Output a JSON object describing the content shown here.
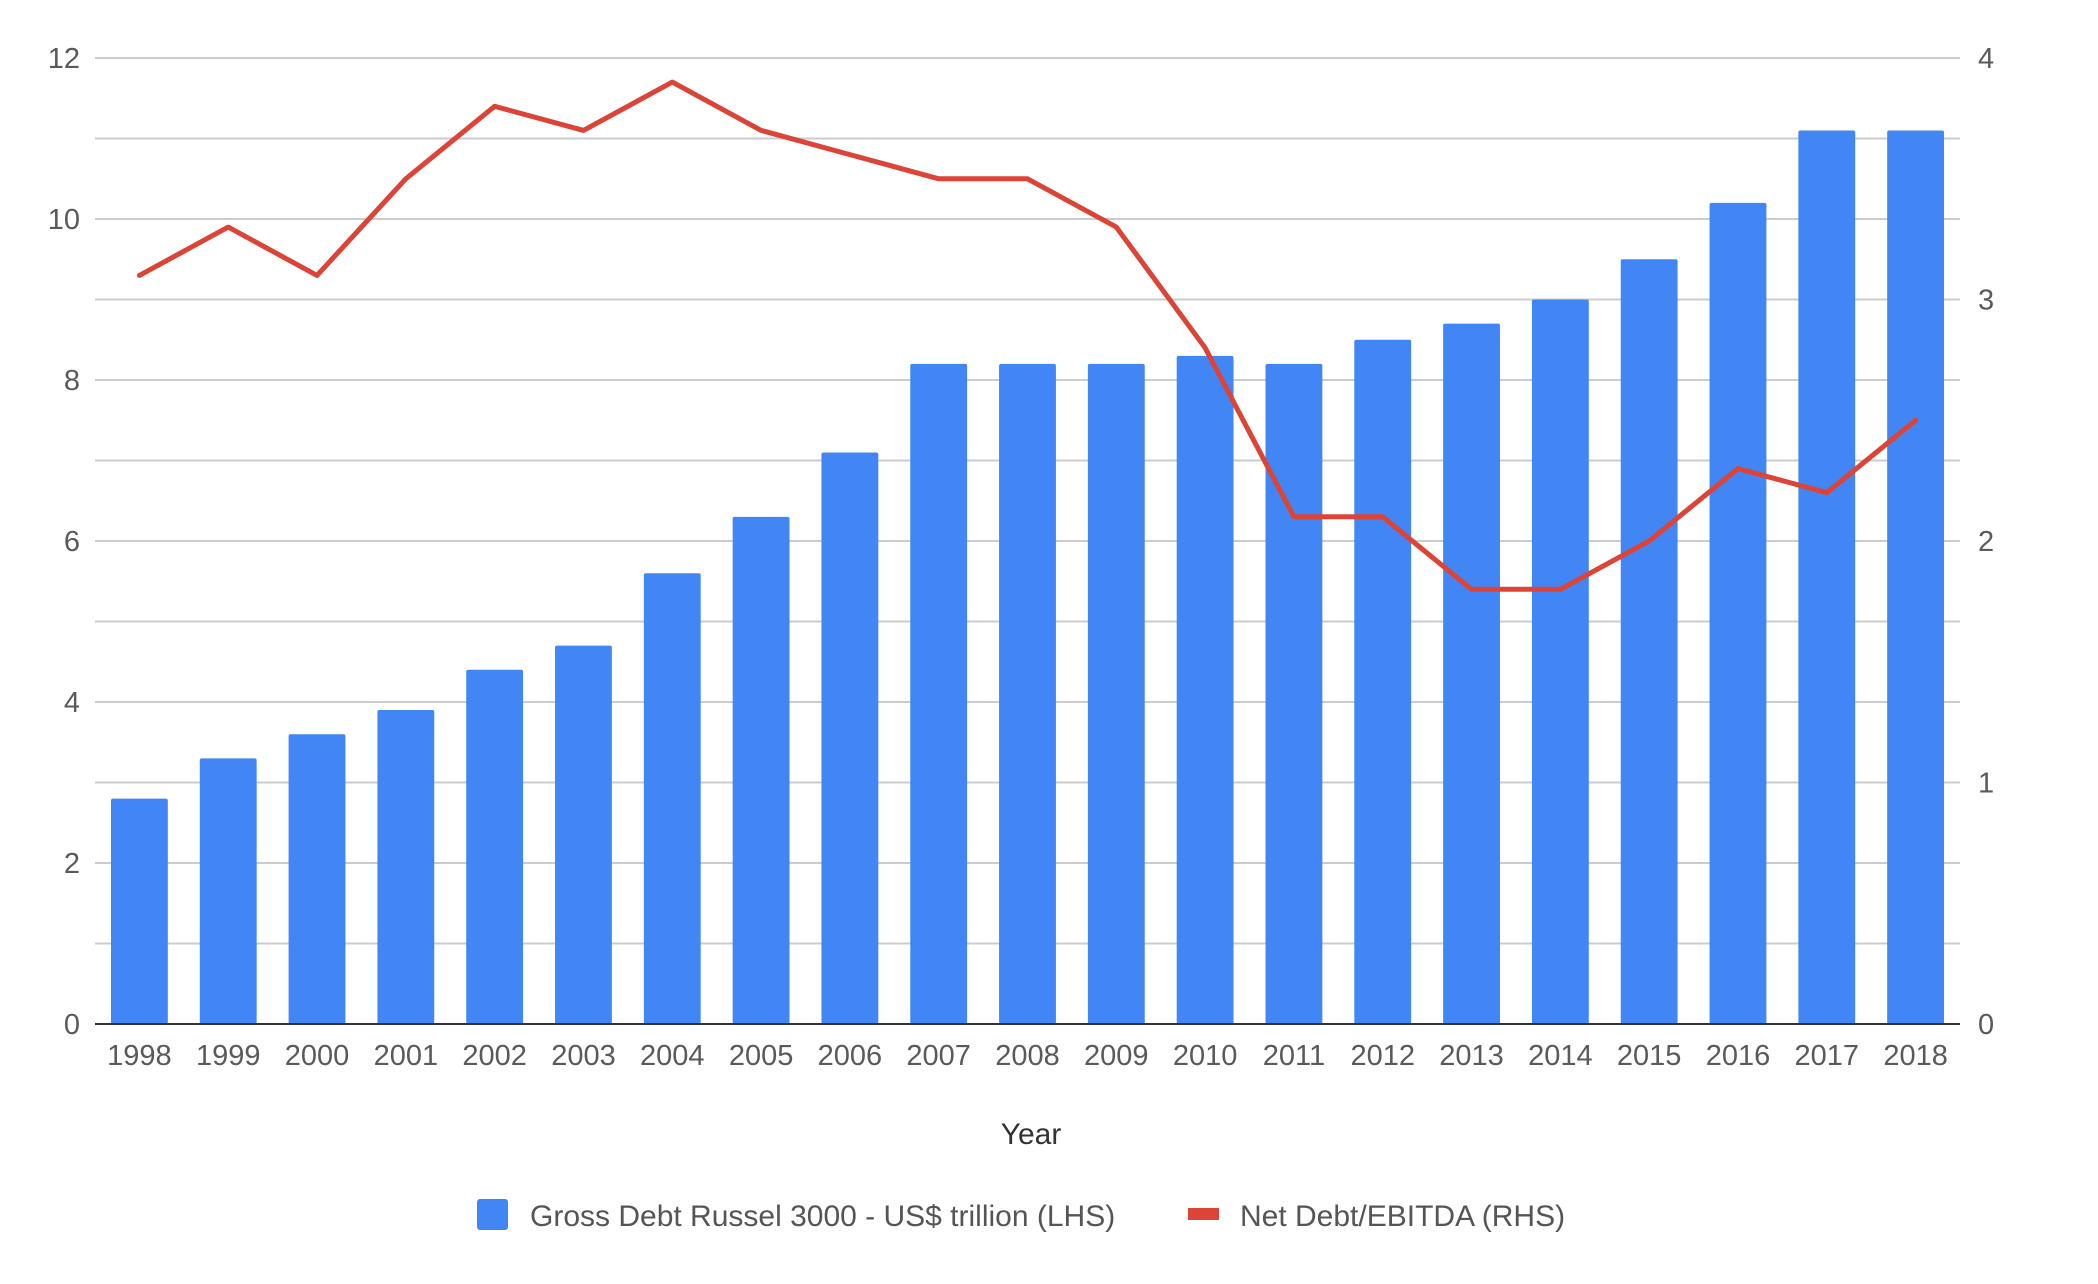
{
  "chart_data": {
    "type": "bar",
    "title": "",
    "xlabel": "Year",
    "ylabel": "",
    "categories": [
      "1998",
      "1999",
      "2000",
      "2001",
      "2002",
      "2003",
      "2004",
      "2005",
      "2006",
      "2007",
      "2008",
      "2009",
      "2010",
      "2011",
      "2012",
      "2013",
      "2014",
      "2015",
      "2016",
      "2017",
      "2018"
    ],
    "y_left": {
      "ylim": [
        0,
        12
      ],
      "ticks": [
        "0",
        "2",
        "4",
        "6",
        "8",
        "10",
        "12"
      ]
    },
    "y_right": {
      "ylim": [
        0,
        4
      ],
      "ticks": [
        "0",
        "1",
        "2",
        "3",
        "4"
      ]
    },
    "grid": true,
    "legend_position": "bottom",
    "series": [
      {
        "name": "Gross Debt Russel 3000 - US$ trillion (LHS)",
        "type": "bar",
        "axis": "left",
        "color": "#4285f4",
        "values": [
          2.8,
          3.3,
          3.6,
          3.9,
          4.4,
          4.7,
          5.6,
          6.3,
          7.1,
          8.2,
          8.2,
          8.2,
          8.3,
          8.2,
          8.5,
          8.7,
          9.0,
          9.5,
          10.2,
          11.1,
          11.1
        ]
      },
      {
        "name": "Net Debt/EBITDA (RHS)",
        "type": "line",
        "axis": "right",
        "color": "#db4437",
        "values": [
          3.1,
          3.3,
          3.1,
          3.5,
          3.8,
          3.7,
          3.9,
          3.7,
          3.6,
          3.5,
          3.5,
          3.3,
          2.8,
          2.1,
          2.1,
          1.8,
          1.8,
          2.0,
          2.3,
          2.2,
          2.5
        ]
      }
    ]
  }
}
